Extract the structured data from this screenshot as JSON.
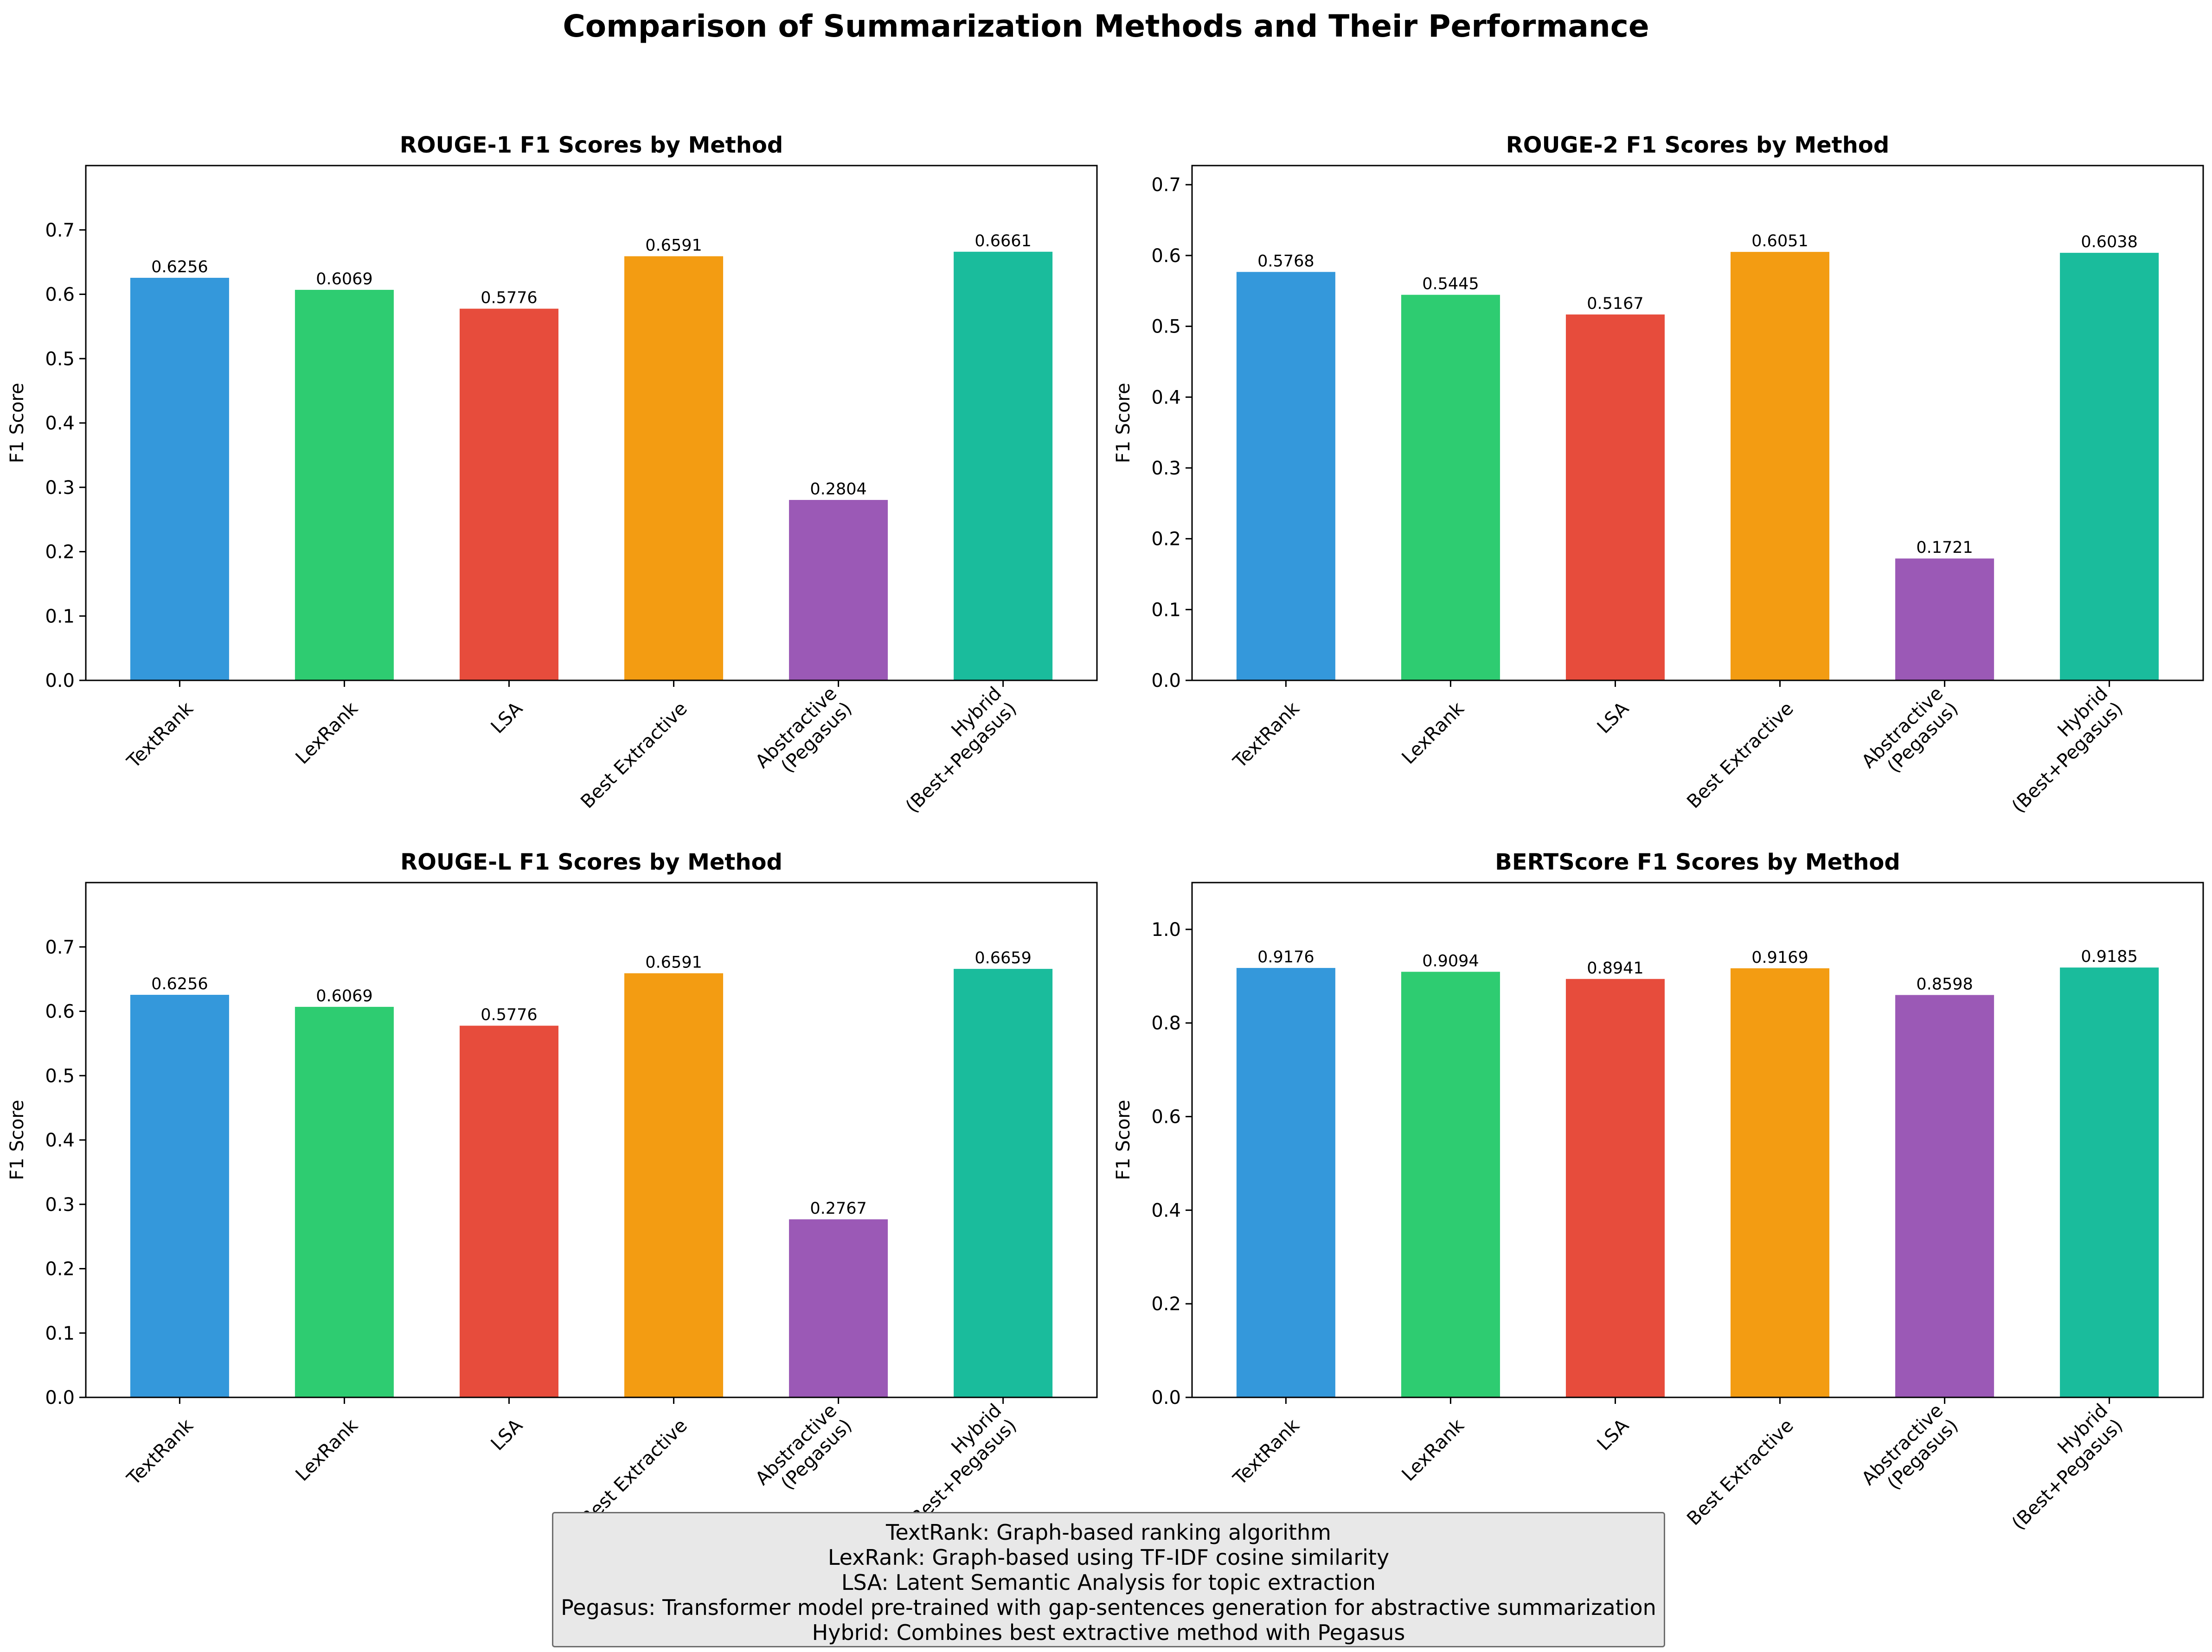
{
  "title": "Comparison of Summarization Methods and Their Performance",
  "chart_data": [
    {
      "type": "bar",
      "title": "ROUGE-1 F1 Scores by Method",
      "xlabel": "",
      "ylabel": "F1 Score",
      "categories": [
        "TextRank",
        "LexRank",
        "LSA",
        "Best Extractive",
        "Abstractive\n(Pegasus)",
        "Hybrid\n(Best+Pegasus)"
      ],
      "values": [
        0.6256,
        0.6069,
        0.5776,
        0.6591,
        0.2804,
        0.6661
      ],
      "value_labels": [
        "0.6256",
        "0.6069",
        "0.5776",
        "0.6591",
        "0.2804",
        "0.6661"
      ],
      "ylim": [
        0,
        0.8
      ],
      "yticks": [
        0.0,
        0.1,
        0.2,
        0.3,
        0.4,
        0.5,
        0.6,
        0.7
      ],
      "ytick_labels": [
        "0.0",
        "0.1",
        "0.2",
        "0.3",
        "0.4",
        "0.5",
        "0.6",
        "0.7"
      ],
      "grid": false
    },
    {
      "type": "bar",
      "title": "ROUGE-2 F1 Scores by Method",
      "xlabel": "",
      "ylabel": "F1 Score",
      "categories": [
        "TextRank",
        "LexRank",
        "LSA",
        "Best Extractive",
        "Abstractive\n(Pegasus)",
        "Hybrid\n(Best+Pegasus)"
      ],
      "values": [
        0.5768,
        0.5445,
        0.5167,
        0.6051,
        0.1721,
        0.6038
      ],
      "value_labels": [
        "0.5768",
        "0.5445",
        "0.5167",
        "0.6051",
        "0.1721",
        "0.6038"
      ],
      "ylim": [
        0,
        0.727
      ],
      "yticks": [
        0.0,
        0.1,
        0.2,
        0.3,
        0.4,
        0.5,
        0.6,
        0.7
      ],
      "ytick_labels": [
        "0.0",
        "0.1",
        "0.2",
        "0.3",
        "0.4",
        "0.5",
        "0.6",
        "0.7"
      ],
      "grid": false
    },
    {
      "type": "bar",
      "title": "ROUGE-L F1 Scores by Method",
      "xlabel": "",
      "ylabel": "F1 Score",
      "categories": [
        "TextRank",
        "LexRank",
        "LSA",
        "Best Extractive",
        "Abstractive\n(Pegasus)",
        "Hybrid\n(Best+Pegasus)"
      ],
      "values": [
        0.6256,
        0.6069,
        0.5776,
        0.6591,
        0.2767,
        0.6659
      ],
      "value_labels": [
        "0.6256",
        "0.6069",
        "0.5776",
        "0.6591",
        "0.2767",
        "0.6659"
      ],
      "ylim": [
        0,
        0.8
      ],
      "yticks": [
        0.0,
        0.1,
        0.2,
        0.3,
        0.4,
        0.5,
        0.6,
        0.7
      ],
      "ytick_labels": [
        "0.0",
        "0.1",
        "0.2",
        "0.3",
        "0.4",
        "0.5",
        "0.6",
        "0.7"
      ],
      "grid": false
    },
    {
      "type": "bar",
      "title": "BERTScore F1 Scores by Method",
      "xlabel": "",
      "ylabel": "F1 Score",
      "categories": [
        "TextRank",
        "LexRank",
        "LSA",
        "Best Extractive",
        "Abstractive\n(Pegasus)",
        "Hybrid\n(Best+Pegasus)"
      ],
      "values": [
        0.9176,
        0.9094,
        0.8941,
        0.9169,
        0.8598,
        0.9185
      ],
      "value_labels": [
        "0.9176",
        "0.9094",
        "0.8941",
        "0.9169",
        "0.8598",
        "0.9185"
      ],
      "ylim": [
        0,
        1.1
      ],
      "yticks": [
        0.0,
        0.2,
        0.4,
        0.6,
        0.8,
        1.0
      ],
      "ytick_labels": [
        "0.0",
        "0.2",
        "0.4",
        "0.6",
        "0.8",
        "1.0"
      ],
      "grid": false
    }
  ],
  "colors": [
    "#3498db",
    "#2ecc71",
    "#e74c3c",
    "#f39c12",
    "#9b59b6",
    "#1abc9c"
  ],
  "notes": [
    "TextRank: Graph-based ranking algorithm",
    "LexRank: Graph-based using TF-IDF cosine similarity",
    "LSA: Latent Semantic Analysis for topic extraction",
    "Pegasus: Transformer model pre-trained with gap-sentences generation for abstractive summarization",
    "Hybrid: Combines best extractive method with Pegasus"
  ]
}
